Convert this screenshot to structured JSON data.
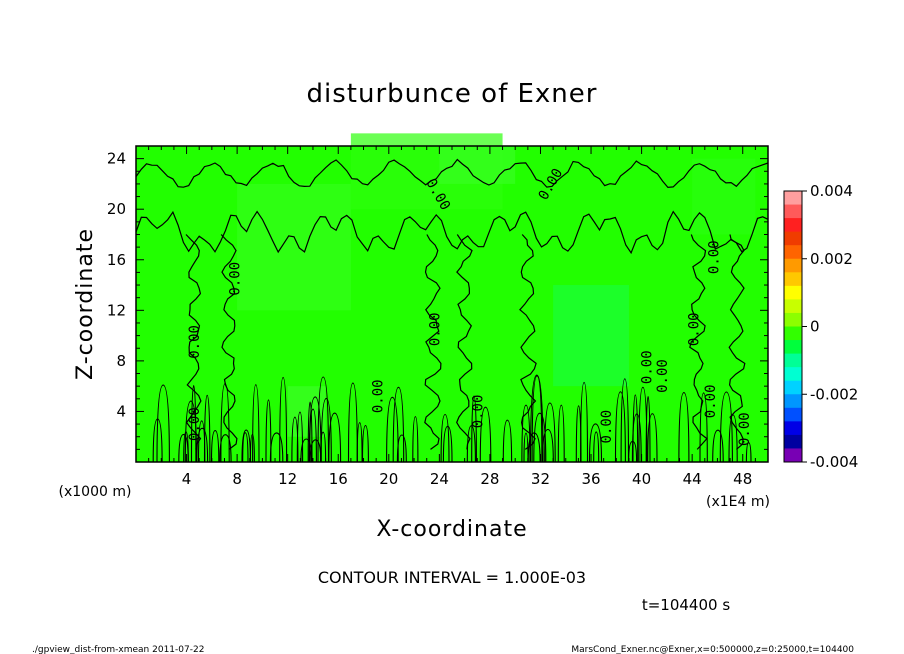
{
  "chart_data": {
    "type": "heatmap",
    "title": "disturbunce of Exner",
    "xlabel": "X-coordinate",
    "ylabel": "Z-coordinate",
    "x_unit_label": "(x1000 m)",
    "x_scale_label": "(x1E4 m)",
    "xlim": [
      0,
      50
    ],
    "ylim": [
      0,
      25
    ],
    "x_ticks": [
      "4",
      "8",
      "12",
      "16",
      "20",
      "24",
      "28",
      "32",
      "36",
      "40",
      "44",
      "48"
    ],
    "y_ticks": [
      "4",
      "8",
      "12",
      "16",
      "20",
      "24"
    ],
    "colorbar": {
      "range": [
        -0.004,
        0.004
      ],
      "tick_labels": [
        "0.004",
        "0.002",
        "0",
        "-0.002",
        "-0.004"
      ],
      "tick_values": [
        0.004,
        0.002,
        0,
        -0.002,
        -0.004
      ],
      "colors": [
        "#ff9f9f",
        "#ff5a5a",
        "#ff2020",
        "#f03c00",
        "#ff6400",
        "#ff9a00",
        "#ffc800",
        "#ffff00",
        "#c8ff00",
        "#8cff00",
        "#32ff00",
        "#00ff3c",
        "#00ff96",
        "#00ffd2",
        "#00d2ff",
        "#0096ff",
        "#0050ff",
        "#0000e6",
        "#0000a0",
        "#7800b4"
      ]
    },
    "contour_interval": "CONTOUR INTERVAL = 1.000E-03",
    "contour_labels": [
      "0.00",
      "0.00",
      "0.00",
      "0.00",
      "0.00",
      "0.00",
      "0.00",
      "0.00",
      "0.00",
      "0.00",
      "0.00",
      "0.00",
      "0.00",
      "0.00",
      "0.00"
    ],
    "time_label": "t=104400 s"
  },
  "footer": {
    "left": "./gpview_dist-from-xmean  2011-07-22",
    "right": "MarsCond_Exner.nc@Exner,x=0:500000,z=0:25000,t=104400"
  }
}
